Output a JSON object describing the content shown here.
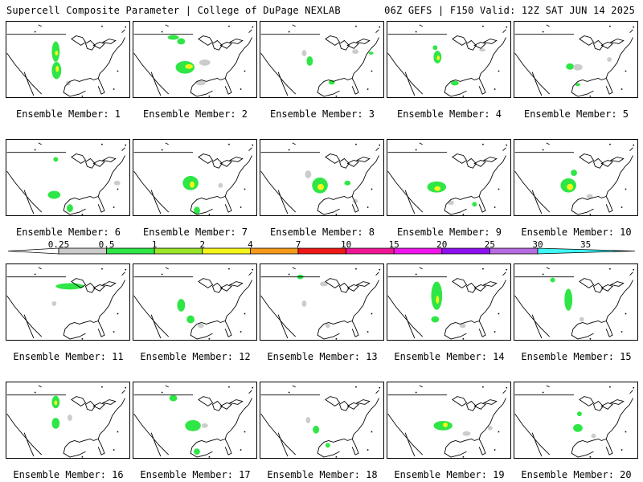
{
  "header": {
    "left": "Supercell Composite Parameter | College of DuPage NEXLAB",
    "right": "06Z GEFS | F150 Valid: 12Z SAT JUN 14 2025"
  },
  "member_label_prefix": "Ensemble Member: ",
  "members": [
    {
      "num": "1",
      "blobs": [
        [
          "g",
          62,
          38,
          5,
          13
        ],
        [
          "g",
          63,
          62,
          6,
          11
        ],
        [
          "y",
          64,
          60,
          2,
          4
        ],
        [
          "y",
          63,
          40,
          2,
          3
        ],
        [
          "x",
          78,
          78,
          3,
          3
        ]
      ]
    },
    {
      "num": "2",
      "blobs": [
        [
          "g",
          65,
          58,
          12,
          8
        ],
        [
          "y",
          70,
          57,
          5,
          3
        ],
        [
          "g",
          60,
          25,
          5,
          4
        ],
        [
          "g",
          50,
          20,
          7,
          3
        ],
        [
          "x",
          90,
          52,
          7,
          4
        ],
        [
          "x",
          85,
          78,
          6,
          3
        ]
      ]
    },
    {
      "num": "3",
      "blobs": [
        [
          "g",
          62,
          50,
          4,
          6
        ],
        [
          "x",
          55,
          40,
          3,
          4
        ],
        [
          "g",
          90,
          77,
          4,
          3
        ],
        [
          "x",
          120,
          38,
          4,
          3
        ],
        [
          "g",
          140,
          40,
          3,
          2
        ]
      ]
    },
    {
      "num": "4",
      "blobs": [
        [
          "g",
          63,
          45,
          5,
          8
        ],
        [
          "y",
          64,
          46,
          2,
          3
        ],
        [
          "g",
          60,
          33,
          3,
          3
        ],
        [
          "g",
          85,
          78,
          5,
          3
        ],
        [
          "x",
          120,
          36,
          4,
          2
        ]
      ]
    },
    {
      "num": "5",
      "blobs": [
        [
          "g",
          70,
          57,
          5,
          4
        ],
        [
          "x",
          80,
          58,
          6,
          4
        ],
        [
          "x",
          120,
          48,
          3,
          3
        ],
        [
          "g",
          80,
          80,
          3,
          2
        ]
      ]
    },
    {
      "num": "6",
      "blobs": [
        [
          "g",
          60,
          70,
          8,
          5
        ],
        [
          "g",
          80,
          87,
          4,
          5
        ],
        [
          "g",
          62,
          25,
          3,
          3
        ],
        [
          "x",
          140,
          55,
          4,
          3
        ]
      ]
    },
    {
      "num": "7",
      "blobs": [
        [
          "g",
          72,
          55,
          10,
          9
        ],
        [
          "y",
          74,
          57,
          3,
          4
        ],
        [
          "g",
          80,
          90,
          4,
          5
        ],
        [
          "x",
          110,
          58,
          3,
          3
        ]
      ]
    },
    {
      "num": "8",
      "blobs": [
        [
          "g",
          75,
          58,
          10,
          10
        ],
        [
          "y",
          76,
          60,
          4,
          4
        ],
        [
          "g",
          110,
          55,
          4,
          3
        ],
        [
          "x",
          60,
          44,
          4,
          5
        ],
        [
          "x",
          120,
          78,
          3,
          3
        ]
      ]
    },
    {
      "num": "9",
      "blobs": [
        [
          "g",
          62,
          60,
          12,
          7
        ],
        [
          "y",
          63,
          62,
          4,
          3
        ],
        [
          "x",
          80,
          80,
          4,
          3
        ],
        [
          "g",
          110,
          82,
          3,
          3
        ]
      ]
    },
    {
      "num": "10",
      "blobs": [
        [
          "g",
          68,
          58,
          10,
          9
        ],
        [
          "y",
          70,
          60,
          4,
          4
        ],
        [
          "g",
          75,
          42,
          4,
          4
        ],
        [
          "x",
          95,
          72,
          4,
          3
        ]
      ]
    },
    {
      "num": "11",
      "blobs": [
        [
          "g",
          80,
          28,
          18,
          4
        ],
        [
          "x",
          60,
          50,
          3,
          3
        ]
      ]
    },
    {
      "num": "12",
      "blobs": [
        [
          "g",
          60,
          52,
          5,
          8
        ],
        [
          "g",
          72,
          70,
          5,
          5
        ],
        [
          "x",
          85,
          78,
          4,
          3
        ]
      ]
    },
    {
      "num": "13",
      "blobs": [
        [
          "g",
          50,
          16,
          4,
          3
        ],
        [
          "x",
          80,
          25,
          5,
          3
        ],
        [
          "x",
          55,
          50,
          3,
          4
        ],
        [
          "x",
          85,
          78,
          3,
          3
        ]
      ]
    },
    {
      "num": "14",
      "blobs": [
        [
          "g",
          62,
          40,
          7,
          18
        ],
        [
          "y",
          63,
          45,
          2,
          5
        ],
        [
          "g",
          60,
          70,
          5,
          4
        ],
        [
          "x",
          95,
          78,
          4,
          3
        ]
      ]
    },
    {
      "num": "15",
      "blobs": [
        [
          "g",
          68,
          45,
          5,
          14
        ],
        [
          "x",
          85,
          70,
          3,
          3
        ],
        [
          "g",
          48,
          20,
          3,
          3
        ]
      ]
    },
    {
      "num": "16",
      "blobs": [
        [
          "g",
          62,
          25,
          5,
          8
        ],
        [
          "g",
          62,
          52,
          5,
          7
        ],
        [
          "y",
          62,
          26,
          2,
          3
        ],
        [
          "x",
          80,
          45,
          3,
          4
        ]
      ]
    },
    {
      "num": "17",
      "blobs": [
        [
          "g",
          75,
          55,
          10,
          7
        ],
        [
          "g",
          50,
          20,
          5,
          4
        ],
        [
          "x",
          90,
          55,
          4,
          3
        ],
        [
          "g",
          80,
          88,
          4,
          4
        ]
      ]
    },
    {
      "num": "18",
      "blobs": [
        [
          "g",
          70,
          60,
          4,
          5
        ],
        [
          "x",
          60,
          48,
          3,
          4
        ],
        [
          "g",
          85,
          80,
          3,
          3
        ]
      ]
    },
    {
      "num": "19",
      "blobs": [
        [
          "g",
          70,
          55,
          12,
          6
        ],
        [
          "y",
          73,
          54,
          3,
          3
        ],
        [
          "x",
          100,
          65,
          5,
          3
        ],
        [
          "x",
          130,
          58,
          3,
          3
        ]
      ]
    },
    {
      "num": "20",
      "blobs": [
        [
          "g",
          82,
          40,
          3,
          3
        ],
        [
          "g",
          80,
          58,
          6,
          5
        ],
        [
          "x",
          100,
          68,
          3,
          3
        ]
      ]
    }
  ],
  "colorbar": {
    "labels": [
      "0.25",
      "0.5",
      "1",
      "2",
      "4",
      "7",
      "10",
      "15",
      "20",
      "25",
      "30",
      "35"
    ],
    "colors": [
      "#cccccc",
      "#2ee645",
      "#9ae629",
      "#f5f51a",
      "#f59a1a",
      "#f01717",
      "#ef1595",
      "#f015ed",
      "#8e0ff0",
      "#b66ce0",
      "#3ff6f6"
    ]
  },
  "legend_colors": {
    "x": "#cccccc",
    "g": "#2ee645",
    "y": "#f5f51a"
  }
}
